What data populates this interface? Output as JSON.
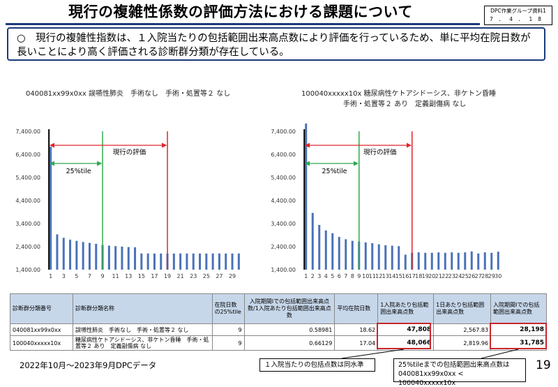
{
  "title": "現行の複雑性係数の評価方法における課題について",
  "badge": {
    "line1": "DPC作業グループ資料1",
    "line2": "7．4．18"
  },
  "callout": "○　現行の複雑性指数は、１入院当たりの包括範囲出来高点数により評価を行っているため、単に平均在院日数が長いことにより高く評価される診断群分類が存在している。",
  "chart_data": [
    {
      "type": "bar",
      "title": "040081xx99x0xx 誤嚥性肺炎　手術なし　手術・処置等２ なし",
      "ylim": [
        1400,
        7400
      ],
      "yticks": [
        "7,400.00",
        "6,400.00",
        "5,400.00",
        "4,400.00",
        "3,400.00",
        "2,400.00",
        "1,400.00"
      ],
      "x": [
        1,
        2,
        3,
        4,
        5,
        6,
        7,
        8,
        9,
        10,
        11,
        12,
        13,
        14,
        15,
        16,
        17,
        18,
        19,
        20,
        21,
        22,
        23,
        24,
        25,
        26,
        27,
        28,
        29,
        30
      ],
      "xticks": [
        "1",
        "3",
        "5",
        "7",
        "9",
        "11",
        "13",
        "15",
        "17",
        "19",
        "21",
        "23",
        "25",
        "27",
        "29"
      ],
      "values": [
        6730,
        2930,
        2780,
        2700,
        2650,
        2600,
        2560,
        2520,
        2470,
        2440,
        2420,
        2400,
        2380,
        2370,
        2100,
        2100,
        2100,
        2100,
        2100,
        2100,
        2100,
        2100,
        2100,
        2100,
        2100,
        2100,
        2100,
        2100,
        2100,
        2100
      ],
      "annotations": {
        "current_label": "現行の評価",
        "p25_label": "25%tile",
        "p25_day": 9,
        "current_day": 19
      },
      "grid": false
    },
    {
      "type": "bar",
      "title": "100040xxxxx10x 糖尿病性ケトアシドーシス、非ケトン昏睡",
      "subtitle": "手術・処置等２ あり　定義副傷病 なし",
      "ylim": [
        1400,
        7400
      ],
      "yticks": [
        "7,400.00",
        "6,400.00",
        "5,400.00",
        "4,400.00",
        "3,400.00",
        "2,400.00",
        "1,400.00"
      ],
      "x": [
        1,
        2,
        3,
        4,
        5,
        6,
        7,
        8,
        9,
        10,
        11,
        12,
        13,
        14,
        15,
        16,
        17,
        18,
        19,
        20,
        21,
        22,
        23,
        24,
        25,
        26,
        27,
        28,
        29,
        30
      ],
      "xticks": [
        "1",
        "2",
        "3",
        "4",
        "5",
        "6",
        "7",
        "8",
        "9",
        "10",
        "11",
        "12",
        "13",
        "14",
        "15",
        "16",
        "17",
        "18",
        "19",
        "20",
        "21",
        "22",
        "23",
        "24",
        "25",
        "26",
        "27",
        "28",
        "29",
        "30"
      ],
      "values": [
        7740,
        3860,
        3340,
        3100,
        2980,
        2820,
        2720,
        2650,
        2620,
        2580,
        2550,
        2500,
        2460,
        2440,
        2420,
        2050,
        2130,
        2150,
        2130,
        2130,
        2150,
        2130,
        2150,
        2130,
        2150,
        2190,
        2100,
        2150,
        2130,
        2180
      ],
      "annotations": {
        "current_label": "現行の評価",
        "p25_label": "25%tile",
        "p25_day": 9,
        "current_day": 17
      },
      "grid": false
    }
  ],
  "table": {
    "headers": [
      "診断群分類番号",
      "診断群分類名称",
      "在院日数の25%tile",
      "入院期間Ⅰでの包括範囲出来高点数/1入院あたり包括範囲出来高点数",
      "平均在院日数",
      "1入院あたり包括範囲出来高点数",
      "1日あたり包括範囲出来高点数",
      "入院期間Ⅰでの包括範囲出来高点数"
    ],
    "rows": [
      [
        "040081xx99x0xx",
        "誤嚥性肺炎　手術なし　手術・処置等２ なし",
        "9",
        "0.58981",
        "18.62",
        "47,808",
        "2,567.83",
        "28,198"
      ],
      [
        "100040xxxxx10x",
        "糖尿病性ケトアシドーシス、非ケトン昏睡　手術・処置等２ あり　定義副傷病 なし",
        "9",
        "0.66129",
        "17.04",
        "48,066",
        "2,819.96",
        "31,785"
      ]
    ]
  },
  "footer": {
    "data_period": "2022年10月～2023年9月DPCデータ",
    "note1": "１入院当たりの包括点数は同水準",
    "note2_line1": "25%tileまでの包括範囲出来高点数は",
    "note2_line2": "040081xx99x0xx < 100040xxxxx10x",
    "page": "19"
  },
  "colors": {
    "bar": "#4a72b8",
    "current_line": "#e0262c",
    "p25_line": "#2fa84f",
    "table_header": "#c7d7ea",
    "accent": "#1a3a7a"
  }
}
